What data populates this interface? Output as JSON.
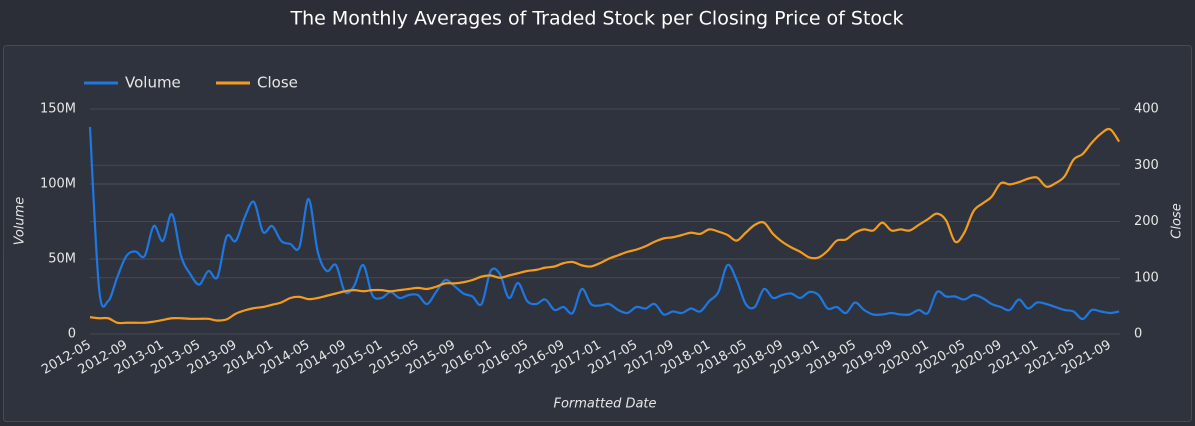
{
  "chart_data": {
    "type": "line",
    "title": "The Monthly Averages of Traded Stock per Closing Price of Stock",
    "xlabel": "Formatted Date",
    "ylabel": "Volume",
    "y2label": "Close",
    "categories": [
      "2012-05",
      null,
      null,
      null,
      "2012-09",
      null,
      null,
      null,
      "2013-01",
      null,
      null,
      null,
      "2013-05",
      null,
      null,
      null,
      "2013-09",
      null,
      null,
      null,
      "2014-01",
      null,
      null,
      null,
      "2014-05",
      null,
      null,
      null,
      "2014-09",
      null,
      null,
      null,
      "2015-01",
      null,
      null,
      null,
      "2015-05",
      null,
      null,
      null,
      "2015-09",
      null,
      null,
      null,
      "2016-01",
      null,
      null,
      null,
      "2016-05",
      null,
      null,
      null,
      "2016-09",
      null,
      null,
      null,
      "2017-01",
      null,
      null,
      null,
      "2017-05",
      null,
      null,
      null,
      "2017-09",
      null,
      null,
      null,
      "2018-01",
      null,
      null,
      null,
      "2018-05",
      null,
      null,
      null,
      "2018-09",
      null,
      null,
      null,
      "2019-01",
      null,
      null,
      null,
      "2019-05",
      null,
      null,
      null,
      "2019-09",
      null,
      null,
      null,
      "2020-01",
      null,
      null,
      null,
      "2020-05",
      null,
      null,
      null,
      "2020-09",
      null,
      null,
      null,
      "2021-01",
      null,
      null,
      null,
      "2021-05",
      null,
      null,
      null,
      "2021-09",
      null
    ],
    "series": [
      {
        "name": "Volume",
        "color": "#1f77e0",
        "values": [
          138000000,
          30000000,
          22000000,
          38000000,
          52000000,
          55000000,
          52000000,
          72000000,
          62000000,
          80000000,
          52000000,
          40000000,
          33000000,
          42000000,
          38000000,
          65000000,
          62000000,
          78000000,
          88000000,
          68000000,
          72000000,
          62000000,
          60000000,
          58000000,
          90000000,
          55000000,
          42000000,
          46000000,
          28000000,
          32000000,
          46000000,
          26000000,
          24000000,
          28000000,
          24000000,
          26000000,
          26000000,
          20000000,
          28000000,
          36000000,
          32000000,
          27000000,
          25000000,
          20000000,
          42000000,
          40000000,
          24000000,
          34000000,
          22000000,
          20000000,
          23000000,
          16000000,
          18000000,
          14000000,
          30000000,
          20000000,
          19000000,
          20000000,
          16000000,
          14000000,
          18000000,
          17000000,
          20000000,
          13000000,
          15000000,
          14000000,
          17000000,
          15000000,
          22000000,
          28000000,
          46000000,
          36000000,
          20000000,
          18000000,
          30000000,
          24000000,
          26000000,
          27000000,
          24000000,
          28000000,
          26000000,
          17000000,
          18000000,
          14000000,
          21000000,
          16000000,
          13000000,
          13000000,
          14000000,
          13000000,
          13000000,
          16000000,
          14000000,
          28000000,
          25000000,
          25000000,
          23000000,
          26000000,
          24000000,
          20000000,
          18000000,
          16000000,
          23000000,
          17000000,
          21000000,
          20000000,
          18000000,
          16000000,
          15000000,
          10000000,
          16000000,
          15000000,
          14000000,
          15000000
        ]
      },
      {
        "name": "Close",
        "color": "#f39c1f",
        "axis": "y2",
        "values": [
          30,
          28,
          28,
          20,
          20,
          20,
          20,
          22,
          25,
          28,
          28,
          27,
          27,
          27,
          24,
          26,
          36,
          42,
          46,
          48,
          52,
          56,
          64,
          66,
          62,
          64,
          68,
          72,
          76,
          78,
          76,
          78,
          78,
          76,
          78,
          80,
          82,
          80,
          84,
          90,
          90,
          92,
          96,
          102,
          104,
          100,
          104,
          108,
          112,
          114,
          118,
          120,
          126,
          128,
          122,
          120,
          126,
          134,
          140,
          146,
          150,
          156,
          164,
          170,
          172,
          176,
          180,
          178,
          186,
          182,
          176,
          166,
          180,
          194,
          198,
          178,
          164,
          154,
          146,
          136,
          136,
          148,
          166,
          168,
          180,
          186,
          184,
          198,
          184,
          186,
          184,
          194,
          204,
          214,
          202,
          164,
          180,
          218,
          232,
          244,
          268,
          266,
          270,
          276,
          278,
          262,
          268,
          280,
          310,
          320,
          340,
          356,
          364,
          342
        ]
      }
    ],
    "ylim": [
      0,
      150000000
    ],
    "yticks": [
      0,
      {
        "value": 50000000,
        "label": "50M"
      },
      {
        "value": 100000000,
        "label": "100M"
      },
      {
        "value": 150000000,
        "label": "150M"
      }
    ],
    "y2lim": [
      0,
      400
    ],
    "y2ticks": [
      0,
      100,
      200,
      300,
      400
    ],
    "grid": true,
    "legend": "top-left"
  }
}
